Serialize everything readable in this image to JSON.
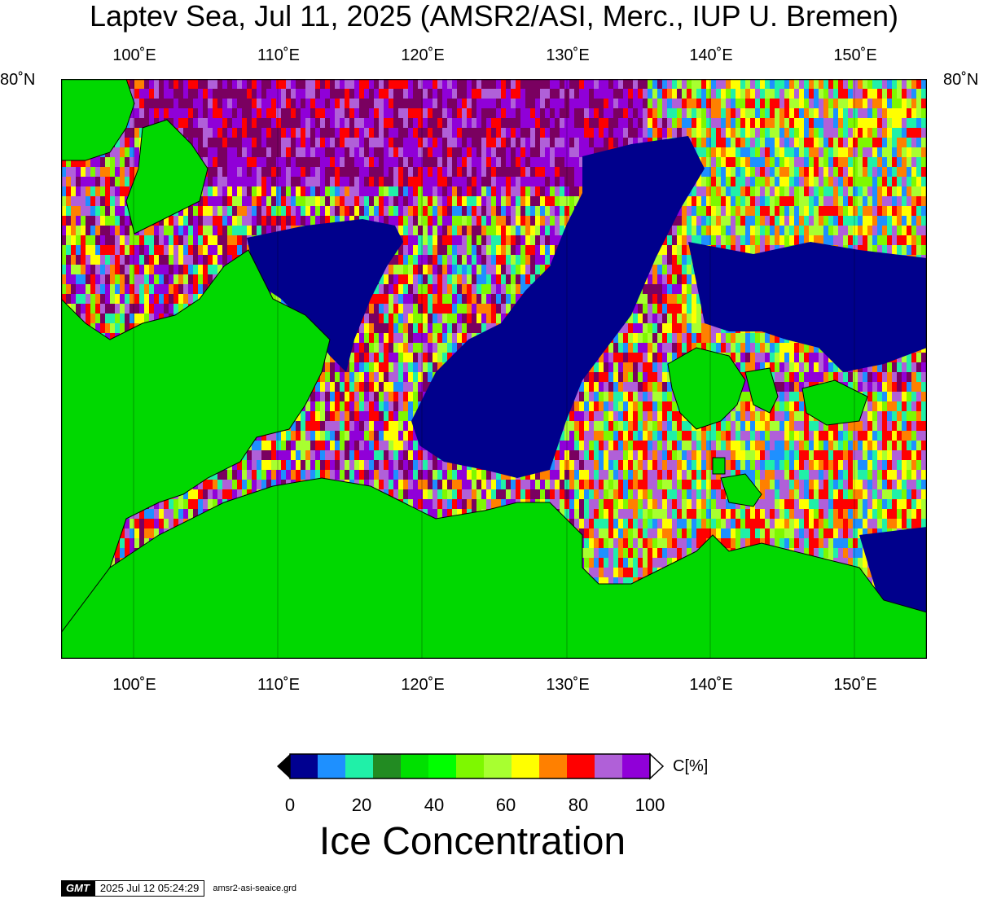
{
  "title": "Laptev Sea, Jul 11, 2025 (AMSR2/ASI, Merc., IUP U. Bremen)",
  "lat_label": "80˚N",
  "lon_labels": [
    "100˚E",
    "110˚E",
    "120˚E",
    "130˚E",
    "140˚E",
    "150˚E"
  ],
  "map": {
    "lon_range": [
      95,
      155
    ],
    "lat_top": "80˚N",
    "colors": {
      "land": "#00d800",
      "open_water": "#00008c",
      "coast": "#000000"
    }
  },
  "colorbar": {
    "unit": "C[%]",
    "title": "Ice Concentration",
    "tick_labels": [
      "0",
      "20",
      "40",
      "60",
      "80",
      "100"
    ],
    "range": [
      0,
      100
    ],
    "colors": [
      "#000090",
      "#1e90ff",
      "#20f0a8",
      "#228b22",
      "#00e000",
      "#00ff00",
      "#7ef800",
      "#a8ff30",
      "#ffff00",
      "#ff8000",
      "#ff0000",
      "#b060d8",
      "#9000d8"
    ]
  },
  "footer": {
    "logo": "GMT",
    "timestamp": "2025 Jul 12 05:24:29",
    "filename": "amsr2-asi-seaice.grd"
  }
}
